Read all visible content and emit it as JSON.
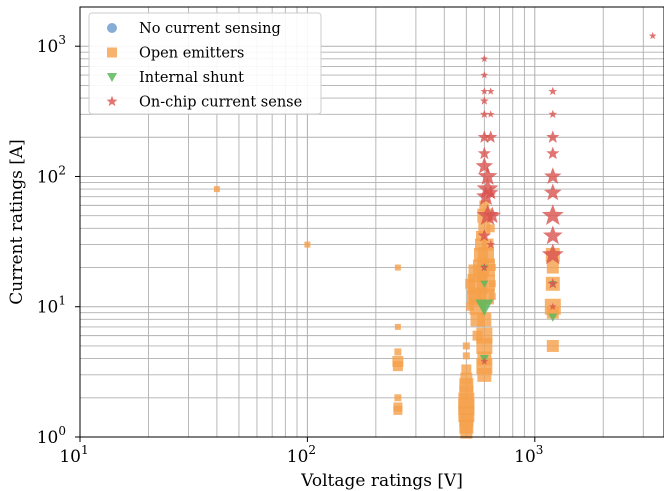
{
  "chart_data": {
    "type": "scatter",
    "title": "",
    "xlabel": "Voltage ratings [V]",
    "ylabel": "Current ratings [A]",
    "xscale": "log",
    "yscale": "log",
    "xlim": [
      10,
      3700
    ],
    "ylim": [
      1,
      2000
    ],
    "xticks": [
      {
        "value": 10,
        "base": "10",
        "exp": "1"
      },
      {
        "value": 100,
        "base": "10",
        "exp": "2"
      },
      {
        "value": 1000,
        "base": "10",
        "exp": "3"
      }
    ],
    "yticks": [
      {
        "value": 1,
        "base": "10",
        "exp": "0"
      },
      {
        "value": 10,
        "base": "10",
        "exp": "1"
      },
      {
        "value": 100,
        "base": "10",
        "exp": "2"
      },
      {
        "value": 1000,
        "base": "10",
        "exp": "3"
      }
    ],
    "grid": "major+minor",
    "legend_position": "top-left",
    "series": [
      {
        "name": "No current sensing",
        "marker": "circle",
        "color": "#6699cc",
        "points": []
      },
      {
        "name": "Open emitters",
        "marker": "square",
        "color": "#f5a04a",
        "points": [
          {
            "x": 40,
            "y": 80,
            "s": 6
          },
          {
            "x": 100,
            "y": 30,
            "s": 6
          },
          {
            "x": 250,
            "y": 20,
            "s": 6
          },
          {
            "x": 250,
            "y": 7,
            "s": 6
          },
          {
            "x": 250,
            "y": 4.5,
            "s": 7
          },
          {
            "x": 250,
            "y": 3.8,
            "s": 11
          },
          {
            "x": 250,
            "y": 3.5,
            "s": 10
          },
          {
            "x": 250,
            "y": 2,
            "s": 7
          },
          {
            "x": 250,
            "y": 1.7,
            "s": 9
          },
          {
            "x": 250,
            "y": 1.6,
            "s": 9
          },
          {
            "x": 500,
            "y": 5,
            "s": 7
          },
          {
            "x": 500,
            "y": 4.2,
            "s": 7
          },
          {
            "x": 500,
            "y": 3.3,
            "s": 10
          },
          {
            "x": 500,
            "y": 2.8,
            "s": 12
          },
          {
            "x": 500,
            "y": 2.5,
            "s": 14
          },
          {
            "x": 500,
            "y": 2.2,
            "s": 14
          },
          {
            "x": 500,
            "y": 1.9,
            "s": 16
          },
          {
            "x": 500,
            "y": 1.7,
            "s": 16
          },
          {
            "x": 500,
            "y": 1.5,
            "s": 16
          },
          {
            "x": 500,
            "y": 1.35,
            "s": 14
          },
          {
            "x": 500,
            "y": 1.2,
            "s": 14
          },
          {
            "x": 500,
            "y": 1.08,
            "s": 12
          },
          {
            "x": 520,
            "y": 10,
            "s": 8
          },
          {
            "x": 520,
            "y": 15,
            "s": 10
          },
          {
            "x": 540,
            "y": 12,
            "s": 14
          },
          {
            "x": 560,
            "y": 6,
            "s": 10
          },
          {
            "x": 560,
            "y": 8,
            "s": 14
          },
          {
            "x": 560,
            "y": 10,
            "s": 16
          },
          {
            "x": 560,
            "y": 12,
            "s": 18
          },
          {
            "x": 560,
            "y": 15,
            "s": 20
          },
          {
            "x": 560,
            "y": 18,
            "s": 18
          },
          {
            "x": 580,
            "y": 20,
            "s": 16
          },
          {
            "x": 580,
            "y": 25,
            "s": 14
          },
          {
            "x": 580,
            "y": 30,
            "s": 12
          },
          {
            "x": 580,
            "y": 35,
            "s": 10
          },
          {
            "x": 600,
            "y": 40,
            "s": 12
          },
          {
            "x": 600,
            "y": 50,
            "s": 14
          },
          {
            "x": 600,
            "y": 60,
            "s": 10
          },
          {
            "x": 600,
            "y": 8,
            "s": 14
          },
          {
            "x": 600,
            "y": 6,
            "s": 16
          },
          {
            "x": 600,
            "y": 5,
            "s": 16
          },
          {
            "x": 600,
            "y": 4,
            "s": 14
          },
          {
            "x": 600,
            "y": 3.5,
            "s": 16
          },
          {
            "x": 600,
            "y": 3,
            "s": 14
          },
          {
            "x": 610,
            "y": 25,
            "s": 16
          },
          {
            "x": 610,
            "y": 20,
            "s": 18
          },
          {
            "x": 610,
            "y": 15,
            "s": 18
          },
          {
            "x": 610,
            "y": 12,
            "s": 16
          },
          {
            "x": 620,
            "y": 30,
            "s": 12
          },
          {
            "x": 640,
            "y": 40,
            "s": 8
          },
          {
            "x": 650,
            "y": 20,
            "s": 7
          },
          {
            "x": 650,
            "y": 15,
            "s": 7
          },
          {
            "x": 650,
            "y": 12,
            "s": 7
          },
          {
            "x": 1200,
            "y": 25,
            "s": 14
          },
          {
            "x": 1200,
            "y": 20,
            "s": 12
          },
          {
            "x": 1200,
            "y": 15,
            "s": 14
          },
          {
            "x": 1200,
            "y": 10,
            "s": 16
          },
          {
            "x": 1200,
            "y": 9,
            "s": 12
          },
          {
            "x": 1200,
            "y": 5,
            "s": 12
          }
        ]
      },
      {
        "name": "Internal shunt",
        "marker": "triangle-down",
        "color": "#5cb85c",
        "points": [
          {
            "x": 600,
            "y": 10,
            "s": 18
          },
          {
            "x": 600,
            "y": 15,
            "s": 8
          },
          {
            "x": 600,
            "y": 20,
            "s": 7
          },
          {
            "x": 600,
            "y": 4,
            "s": 9
          },
          {
            "x": 1200,
            "y": 8.3,
            "s": 9
          },
          {
            "x": 1200,
            "y": 15,
            "s": 7
          }
        ]
      },
      {
        "name": "On-chip current sense",
        "marker": "star",
        "color": "#d9534f",
        "points": [
          {
            "x": 3300,
            "y": 1200,
            "s": 7
          },
          {
            "x": 600,
            "y": 800,
            "s": 7
          },
          {
            "x": 600,
            "y": 600,
            "s": 7
          },
          {
            "x": 600,
            "y": 450,
            "s": 7
          },
          {
            "x": 640,
            "y": 450,
            "s": 7
          },
          {
            "x": 600,
            "y": 380,
            "s": 8
          },
          {
            "x": 600,
            "y": 300,
            "s": 8
          },
          {
            "x": 640,
            "y": 300,
            "s": 7
          },
          {
            "x": 600,
            "y": 200,
            "s": 12
          },
          {
            "x": 640,
            "y": 200,
            "s": 12
          },
          {
            "x": 600,
            "y": 150,
            "s": 12
          },
          {
            "x": 600,
            "y": 120,
            "s": 16
          },
          {
            "x": 620,
            "y": 100,
            "s": 18
          },
          {
            "x": 620,
            "y": 80,
            "s": 20
          },
          {
            "x": 610,
            "y": 70,
            "s": 18
          },
          {
            "x": 640,
            "y": 75,
            "s": 14
          },
          {
            "x": 620,
            "y": 50,
            "s": 20
          },
          {
            "x": 650,
            "y": 50,
            "s": 16
          },
          {
            "x": 600,
            "y": 35,
            "s": 12
          },
          {
            "x": 640,
            "y": 30,
            "s": 8
          },
          {
            "x": 600,
            "y": 20,
            "s": 8
          },
          {
            "x": 600,
            "y": 3.8,
            "s": 7
          },
          {
            "x": 1200,
            "y": 450,
            "s": 8
          },
          {
            "x": 1200,
            "y": 300,
            "s": 8
          },
          {
            "x": 1200,
            "y": 200,
            "s": 12
          },
          {
            "x": 1200,
            "y": 150,
            "s": 12
          },
          {
            "x": 1200,
            "y": 100,
            "s": 16
          },
          {
            "x": 1200,
            "y": 75,
            "s": 16
          },
          {
            "x": 1200,
            "y": 50,
            "s": 20
          },
          {
            "x": 1200,
            "y": 35,
            "s": 18
          },
          {
            "x": 1200,
            "y": 25,
            "s": 20
          },
          {
            "x": 1200,
            "y": 15,
            "s": 10
          },
          {
            "x": 1200,
            "y": 10,
            "s": 7
          }
        ]
      }
    ]
  }
}
